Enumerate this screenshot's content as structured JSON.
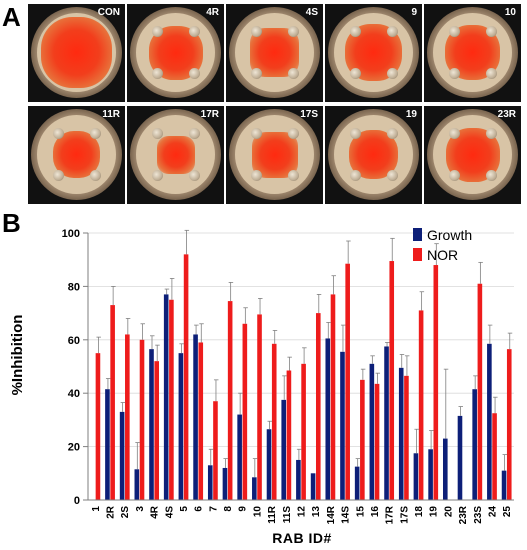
{
  "panels": {
    "a": "A",
    "b": "B"
  },
  "plates": [
    {
      "label": "CON",
      "colony": 0.9,
      "shape": "round",
      "disks": 0
    },
    {
      "label": "4R",
      "colony": 0.68,
      "shape": "round",
      "disks": 4
    },
    {
      "label": "4S",
      "colony": 0.62,
      "shape": "star",
      "disks": 4
    },
    {
      "label": "9",
      "colony": 0.72,
      "shape": "round",
      "disks": 4
    },
    {
      "label": "10",
      "colony": 0.7,
      "shape": "round",
      "disks": 4
    },
    {
      "label": "11R",
      "colony": 0.6,
      "shape": "round",
      "disks": 4
    },
    {
      "label": "17R",
      "colony": 0.48,
      "shape": "star",
      "disks": 4
    },
    {
      "label": "17S",
      "colony": 0.58,
      "shape": "star",
      "disks": 4
    },
    {
      "label": "19",
      "colony": 0.62,
      "shape": "round",
      "disks": 4
    },
    {
      "label": "23R",
      "colony": 0.68,
      "shape": "round",
      "disks": 4
    }
  ],
  "chart_data": {
    "type": "bar",
    "ylabel": "%Inhibition",
    "xlabel": "RAB ID#",
    "ylim": [
      0,
      100
    ],
    "yticks": [
      0,
      20,
      40,
      60,
      80,
      100
    ],
    "grid": true,
    "legend_position": "top-right",
    "categories": [
      "1",
      "2R",
      "2S",
      "3",
      "4R",
      "4S",
      "5",
      "6",
      "7",
      "8",
      "9",
      "10",
      "11R",
      "11S",
      "12",
      "13",
      "14R",
      "14S",
      "15",
      "16",
      "17R",
      "17S",
      "18",
      "19",
      "20",
      "23R",
      "23S",
      "24",
      "25"
    ],
    "series": [
      {
        "name": "Growth",
        "color": "#0d1f78",
        "values": [
          null,
          41.5,
          33,
          11.5,
          56.5,
          77,
          55,
          62,
          13,
          12,
          32,
          8.5,
          26.5,
          37.5,
          15,
          10,
          60.5,
          55.5,
          12.5,
          51,
          57.5,
          49.5,
          17.5,
          19,
          23,
          31.5,
          41.5,
          58.5,
          11
        ],
        "errors": [
          null,
          4,
          3.5,
          10,
          5,
          2,
          3.5,
          3.5,
          6,
          3.5,
          8,
          7,
          3,
          9,
          4,
          0,
          6,
          10,
          3,
          3,
          1.5,
          5,
          9,
          7,
          26,
          3.5,
          5,
          7,
          6
        ]
      },
      {
        "name": "NOR",
        "color": "#ee1c1c",
        "values": [
          55,
          73,
          62,
          60,
          52,
          75,
          92,
          59,
          37,
          74.5,
          66,
          69.5,
          58.5,
          48.5,
          51,
          70,
          77,
          88.5,
          45,
          43.5,
          89.5,
          46.5,
          71,
          88,
          null,
          null,
          81,
          32.5,
          56.5
        ],
        "errors": [
          6,
          7,
          6,
          6,
          6,
          8,
          9,
          7,
          8,
          7,
          6,
          6,
          5,
          5,
          6,
          7,
          7,
          8.5,
          4,
          4,
          8.5,
          7.5,
          7,
          8,
          null,
          null,
          8,
          6,
          6
        ]
      }
    ]
  }
}
